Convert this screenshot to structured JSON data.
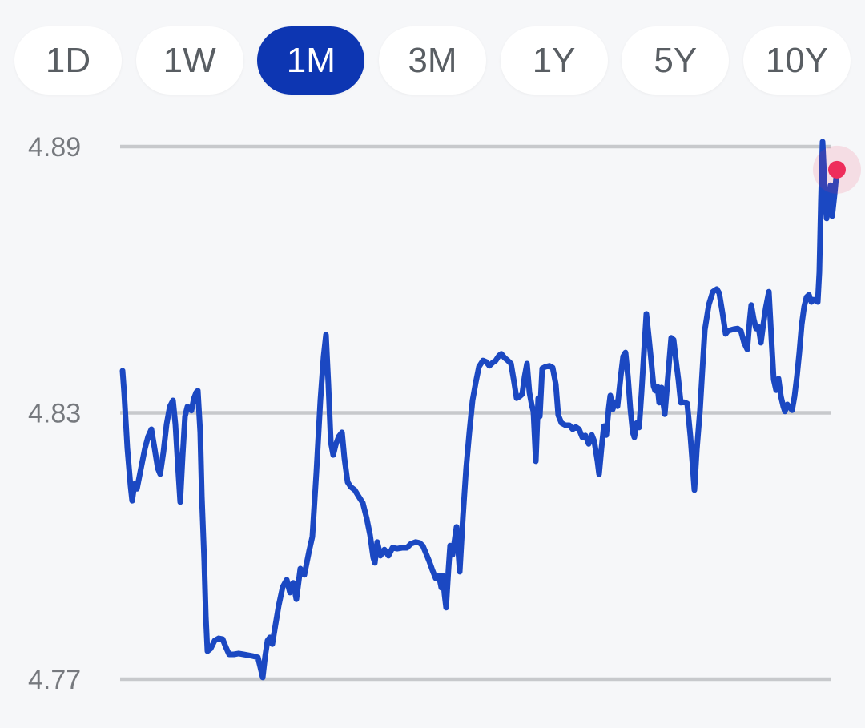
{
  "time_range_selector": {
    "options": [
      {
        "label": "1D",
        "selected": false
      },
      {
        "label": "1W",
        "selected": false
      },
      {
        "label": "1M",
        "selected": true
      },
      {
        "label": "3M",
        "selected": false
      },
      {
        "label": "1Y",
        "selected": false
      },
      {
        "label": "5Y",
        "selected": false
      },
      {
        "label": "10Y",
        "selected": false
      }
    ]
  },
  "colors": {
    "background": "#f6f7f9",
    "pill_background": "#ffffff",
    "pill_text": "#595e63",
    "selected_pill_background": "#0d36b2",
    "selected_pill_text": "#ffffff",
    "gridline": "#c7c9cc",
    "axis_label": "#76797e",
    "line": "#1b48c2",
    "current_dot": "#ee2d5b"
  },
  "chart_data": {
    "type": "line",
    "title": "",
    "xlabel": "",
    "ylabel": "",
    "selected_period": "1M",
    "grid": "horizontal-only",
    "legend": "none",
    "y_axis": {
      "tick_labels": [
        "4.89",
        "4.83",
        "4.77"
      ],
      "tick_values": [
        4.89,
        4.83,
        4.77
      ],
      "range": [
        4.758,
        4.902
      ]
    },
    "x_axis": {
      "tick_labels": []
    },
    "current_point": {
      "value": 4.8848
    },
    "series": [
      {
        "name": "price",
        "color": "#1b48c2",
        "points": [
          [
            153,
            4.8395
          ],
          [
            155,
            4.8346
          ],
          [
            159,
            4.822
          ],
          [
            163,
            4.8135
          ],
          [
            165,
            4.8102
          ],
          [
            168,
            4.814
          ],
          [
            171,
            4.8129
          ],
          [
            176,
            4.8175
          ],
          [
            181,
            4.822
          ],
          [
            185,
            4.8247
          ],
          [
            189,
            4.8263
          ],
          [
            193,
            4.822
          ],
          [
            197,
            4.8175
          ],
          [
            200,
            4.8162
          ],
          [
            204,
            4.8211
          ],
          [
            208,
            4.8274
          ],
          [
            212,
            4.8314
          ],
          [
            216,
            4.8328
          ],
          [
            219,
            4.8274
          ],
          [
            222,
            4.8184
          ],
          [
            225,
            4.8099
          ],
          [
            228,
            4.8202
          ],
          [
            231,
            4.8292
          ],
          [
            234,
            4.8314
          ],
          [
            237,
            4.831
          ],
          [
            239,
            4.8305
          ],
          [
            242,
            4.8332
          ],
          [
            245,
            4.8346
          ],
          [
            247,
            4.835
          ],
          [
            250,
            4.8256
          ],
          [
            252,
            4.8111
          ],
          [
            255,
            4.7967
          ],
          [
            257,
            4.7841
          ],
          [
            259,
            4.7763
          ],
          [
            263,
            4.7769
          ],
          [
            268,
            4.7787
          ],
          [
            273,
            4.7792
          ],
          [
            278,
            4.779
          ],
          [
            282,
            4.7772
          ],
          [
            286,
            4.7756
          ],
          [
            292,
            4.7756
          ],
          [
            298,
            4.7758
          ],
          [
            304,
            4.7756
          ],
          [
            310,
            4.7754
          ],
          [
            316,
            4.7752
          ],
          [
            322,
            4.7749
          ],
          [
            325,
            4.7727
          ],
          [
            328,
            4.7704
          ],
          [
            331,
            4.7751
          ],
          [
            334,
            4.7787
          ],
          [
            337,
            4.7794
          ],
          [
            340,
            4.7779
          ],
          [
            344,
            4.7823
          ],
          [
            348,
            4.7866
          ],
          [
            353,
            4.7908
          ],
          [
            358,
            4.7924
          ],
          [
            362,
            4.7895
          ],
          [
            366,
            4.7917
          ],
          [
            370,
            4.788
          ],
          [
            375,
            4.7949
          ],
          [
            380,
            4.7935
          ],
          [
            386,
            4.7989
          ],
          [
            390,
            4.8021
          ],
          [
            395,
            4.8166
          ],
          [
            400,
            4.8328
          ],
          [
            404,
            4.8427
          ],
          [
            407,
            4.8476
          ],
          [
            410,
            4.8364
          ],
          [
            413,
            4.8234
          ],
          [
            416,
            4.8205
          ],
          [
            419,
            4.8227
          ],
          [
            423,
            4.8247
          ],
          [
            427,
            4.8256
          ],
          [
            430,
            4.8198
          ],
          [
            434,
            4.8144
          ],
          [
            438,
            4.8133
          ],
          [
            443,
            4.8126
          ],
          [
            448,
            4.8111
          ],
          [
            453,
            4.8097
          ],
          [
            458,
            4.8061
          ],
          [
            462,
            4.8025
          ],
          [
            466,
            4.7974
          ],
          [
            468,
            4.7962
          ],
          [
            471,
            4.8009
          ],
          [
            475,
            4.7978
          ],
          [
            480,
            4.7992
          ],
          [
            485,
            4.7978
          ],
          [
            490,
            4.7996
          ],
          [
            496,
            4.7994
          ],
          [
            502,
            4.7996
          ],
          [
            508,
            4.7996
          ],
          [
            513,
            4.8005
          ],
          [
            519,
            4.8009
          ],
          [
            524,
            4.8007
          ],
          [
            528,
            4.8
          ],
          [
            532,
            4.7983
          ],
          [
            536,
            4.7965
          ],
          [
            540,
            4.7945
          ],
          [
            544,
            4.7927
          ],
          [
            548,
            4.7933
          ],
          [
            551,
            4.7906
          ],
          [
            553,
            4.7933
          ],
          [
            555,
            4.7891
          ],
          [
            557,
            4.7861
          ],
          [
            560,
            4.7949
          ],
          [
            562,
            4.8001
          ],
          [
            565,
            4.798
          ],
          [
            568,
            4.8018
          ],
          [
            570,
            4.8043
          ],
          [
            572,
            4.7992
          ],
          [
            574,
            4.7942
          ],
          [
            578,
            4.8066
          ],
          [
            582,
            4.8175
          ],
          [
            586,
            4.8256
          ],
          [
            590,
            4.8328
          ],
          [
            594,
            4.8368
          ],
          [
            598,
            4.8404
          ],
          [
            603,
            4.8418
          ],
          [
            607,
            4.8415
          ],
          [
            611,
            4.8406
          ],
          [
            615,
            4.8413
          ],
          [
            619,
            4.8418
          ],
          [
            623,
            4.8429
          ],
          [
            626,
            4.8433
          ],
          [
            630,
            4.8424
          ],
          [
            634,
            4.8418
          ],
          [
            638,
            4.8411
          ],
          [
            642,
            4.8368
          ],
          [
            645,
            4.8333
          ],
          [
            649,
            4.8337
          ],
          [
            652,
            4.8342
          ],
          [
            655,
            4.8382
          ],
          [
            658,
            4.8411
          ],
          [
            661,
            4.8346
          ],
          [
            664,
            4.8317
          ],
          [
            666,
            4.8303
          ],
          [
            669,
            4.8191
          ],
          [
            672,
            4.8333
          ],
          [
            674,
            4.8292
          ],
          [
            677,
            4.84
          ],
          [
            681,
            4.8404
          ],
          [
            686,
            4.8406
          ],
          [
            690,
            4.8402
          ],
          [
            694,
            4.8364
          ],
          [
            697,
            4.8295
          ],
          [
            701,
            4.8277
          ],
          [
            706,
            4.8272
          ],
          [
            711,
            4.8272
          ],
          [
            715,
            4.8263
          ],
          [
            719,
            4.8268
          ],
          [
            723,
            4.8263
          ],
          [
            727,
            4.8245
          ],
          [
            731,
            4.8249
          ],
          [
            735,
            4.823
          ],
          [
            739,
            4.825
          ],
          [
            742,
            4.8236
          ],
          [
            746,
            4.8191
          ],
          [
            748,
            4.8162
          ],
          [
            751,
            4.822
          ],
          [
            754,
            4.827
          ],
          [
            757,
            4.825
          ],
          [
            760,
            4.831
          ],
          [
            762,
            4.8339
          ],
          [
            765,
            4.8308
          ],
          [
            768,
            4.8324
          ],
          [
            771,
            4.8315
          ],
          [
            775,
            4.8382
          ],
          [
            778,
            4.8427
          ],
          [
            781,
            4.8436
          ],
          [
            784,
            4.8382
          ],
          [
            787,
            4.831
          ],
          [
            790,
            4.8256
          ],
          [
            792,
            4.8245
          ],
          [
            795,
            4.8277
          ],
          [
            798,
            4.8267
          ],
          [
            801,
            4.8346
          ],
          [
            804,
            4.8436
          ],
          [
            807,
            4.8523
          ],
          [
            810,
            4.8472
          ],
          [
            813,
            4.8418
          ],
          [
            816,
            4.836
          ],
          [
            818,
            4.835
          ],
          [
            821,
            4.8359
          ],
          [
            823,
            4.8323
          ],
          [
            826,
            4.8357
          ],
          [
            828,
            4.8323
          ],
          [
            830,
            4.8297
          ],
          [
            834,
            4.8382
          ],
          [
            838,
            4.8469
          ],
          [
            841,
            4.8465
          ],
          [
            844,
            4.8418
          ],
          [
            847,
            4.8375
          ],
          [
            850,
            4.8323
          ],
          [
            854,
            4.8324
          ],
          [
            858,
            4.8321
          ],
          [
            862,
            4.8247
          ],
          [
            865,
            4.8175
          ],
          [
            867,
            4.8126
          ],
          [
            870,
            4.8216
          ],
          [
            874,
            4.8306
          ],
          [
            877,
            4.8397
          ],
          [
            880,
            4.8487
          ],
          [
            885,
            4.8544
          ],
          [
            890,
            4.8573
          ],
          [
            895,
            4.8579
          ],
          [
            898,
            4.857
          ],
          [
            902,
            4.8526
          ],
          [
            906,
            4.8478
          ],
          [
            909,
            4.8485
          ],
          [
            913,
            4.8487
          ],
          [
            917,
            4.8489
          ],
          [
            921,
            4.849
          ],
          [
            925,
            4.8485
          ],
          [
            929,
            4.8458
          ],
          [
            933,
            4.8443
          ],
          [
            936,
            4.8508
          ],
          [
            938,
            4.8543
          ],
          [
            941,
            4.8512
          ],
          [
            944,
            4.849
          ],
          [
            947,
            4.8494
          ],
          [
            950,
            4.8458
          ],
          [
            953,
            4.8499
          ],
          [
            956,
            4.8536
          ],
          [
            960,
            4.8573
          ],
          [
            963,
            4.8472
          ],
          [
            966,
            4.8375
          ],
          [
            969,
            4.8351
          ],
          [
            972,
            4.8377
          ],
          [
            975,
            4.8337
          ],
          [
            978,
            4.8314
          ],
          [
            980,
            4.8303
          ],
          [
            983,
            4.8319
          ],
          [
            986,
            4.8312
          ],
          [
            989,
            4.8306
          ],
          [
            992,
            4.8337
          ],
          [
            995,
            4.8382
          ],
          [
            998,
            4.8436
          ],
          [
            1001,
            4.8499
          ],
          [
            1004,
            4.8539
          ],
          [
            1007,
            4.8561
          ],
          [
            1010,
            4.8566
          ],
          [
            1013,
            4.855
          ],
          [
            1016,
            4.8555
          ],
          [
            1019,
            4.8553
          ],
          [
            1021,
            4.855
          ],
          [
            1023,
            4.8617
          ],
          [
            1025,
            4.8779
          ],
          [
            1027,
            4.8911
          ],
          [
            1030,
            4.8797
          ],
          [
            1032,
            4.8738
          ],
          [
            1035,
            4.8783
          ],
          [
            1037,
            4.8813
          ],
          [
            1039,
            4.8743
          ],
          [
            1042,
            4.8792
          ],
          [
            1045,
            4.8848
          ]
        ]
      }
    ]
  }
}
